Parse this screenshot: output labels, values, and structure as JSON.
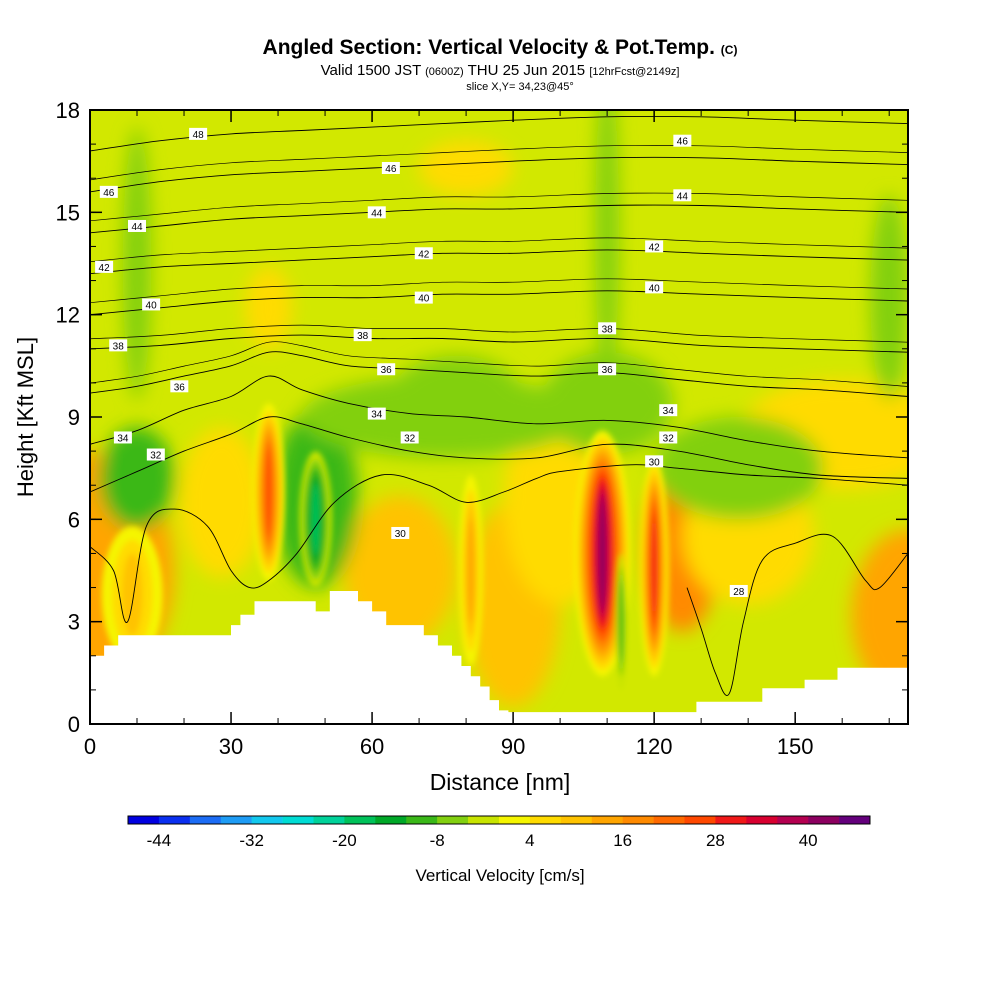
{
  "title": {
    "main": "Angled Section: Vertical Velocity & Pot.Temp.",
    "main_mark": "(C)",
    "valid_prefix": "Valid 1500 JST",
    "valid_utc": "(0600Z)",
    "valid_date": "THU 25 Jun 2015",
    "forecast": "[12hrFcst@2149z]",
    "slice": "slice X,Y= 34,23@45°"
  },
  "chart_data": {
    "type": "heatmap",
    "xlabel": "Distance [nm]",
    "ylabel": "Height [Kft MSL]",
    "xlim": [
      0,
      174
    ],
    "ylim": [
      0,
      18
    ],
    "x_ticks": [
      0,
      30,
      60,
      90,
      120,
      150
    ],
    "y_ticks": [
      0,
      3,
      6,
      9,
      12,
      15,
      18
    ],
    "colorbar": {
      "label": "Vertical Velocity [cm/s]",
      "min": -48,
      "max": 48,
      "step": 4,
      "tick_labels": [
        -44,
        -32,
        -20,
        -8,
        4,
        16,
        28,
        40
      ],
      "colors": [
        "#0000e0",
        "#0a2ff0",
        "#1c6cf5",
        "#1e9cf5",
        "#12c8ee",
        "#00dcd4",
        "#00d29a",
        "#00c25a",
        "#00a828",
        "#3ab818",
        "#82d010",
        "#c8e400",
        "#f5f500",
        "#ffdb00",
        "#ffc300",
        "#ffa500",
        "#ff8a00",
        "#ff6a00",
        "#ff4800",
        "#f01818",
        "#d80030",
        "#b40050",
        "#8c0060",
        "#64007c"
      ]
    },
    "terrain_profile": [
      [
        0,
        2
      ],
      [
        3,
        2
      ],
      [
        3,
        2.3
      ],
      [
        6,
        2.3
      ],
      [
        6,
        2.6
      ],
      [
        30,
        2.6
      ],
      [
        30,
        2.9
      ],
      [
        32,
        2.9
      ],
      [
        32,
        3.2
      ],
      [
        35,
        3.2
      ],
      [
        35,
        3.6
      ],
      [
        48,
        3.6
      ],
      [
        48,
        3.3
      ],
      [
        51,
        3.3
      ],
      [
        51,
        3.9
      ],
      [
        57,
        3.9
      ],
      [
        57,
        3.6
      ],
      [
        60,
        3.6
      ],
      [
        60,
        3.3
      ],
      [
        63,
        3.3
      ],
      [
        63,
        2.9
      ],
      [
        71,
        2.9
      ],
      [
        71,
        2.6
      ],
      [
        74,
        2.6
      ],
      [
        74,
        2.3
      ],
      [
        77,
        2.3
      ],
      [
        77,
        2
      ],
      [
        79,
        2
      ],
      [
        79,
        1.7
      ],
      [
        81,
        1.7
      ],
      [
        81,
        1.4
      ],
      [
        83,
        1.4
      ],
      [
        83,
        1.1
      ],
      [
        85,
        1.1
      ],
      [
        85,
        0.7
      ],
      [
        87,
        0.7
      ],
      [
        87,
        0.4
      ],
      [
        89,
        0.4
      ],
      [
        89,
        0.35
      ],
      [
        129,
        0.35
      ],
      [
        129,
        0.65
      ],
      [
        143,
        0.65
      ],
      [
        143,
        1.05
      ],
      [
        152,
        1.05
      ],
      [
        152,
        1.3
      ],
      [
        159,
        1.3
      ],
      [
        159,
        1.65
      ],
      [
        174,
        1.65
      ]
    ],
    "updrafts": [
      {
        "x": 38,
        "y": 6.8,
        "peak_cm_s": 28
      },
      {
        "x": 109,
        "y": 5.0,
        "peak_cm_s": 44
      },
      {
        "x": 120,
        "y": 4.6,
        "peak_cm_s": 30
      },
      {
        "x": 81,
        "y": 4.5,
        "peak_cm_s": 14
      },
      {
        "x": 9,
        "y": 3.8,
        "peak_cm_s": 12
      }
    ],
    "downdrafts": [
      {
        "x": 48,
        "y": 6.0,
        "peak_cm_s": -20
      },
      {
        "x": 113,
        "y": 3.0,
        "peak_cm_s": -12
      }
    ],
    "pot_temp_contours": [
      {
        "value": 28,
        "label": "28",
        "points": [
          [
            127,
            4.0
          ],
          [
            130,
            2.8
          ],
          [
            133,
            1.5
          ],
          [
            136,
            0.9
          ],
          [
            139,
            3.0
          ],
          [
            143,
            4.8
          ],
          [
            150,
            5.3
          ],
          [
            158,
            5.5
          ],
          [
            165,
            4.2
          ],
          [
            168,
            4.0
          ],
          [
            174,
            5.0
          ]
        ]
      },
      {
        "value": 30,
        "label": "30",
        "points": [
          [
            0,
            5.2
          ],
          [
            5,
            4.5
          ],
          [
            8,
            3.0
          ],
          [
            12,
            5.8
          ],
          [
            18,
            6.3
          ],
          [
            25,
            5.8
          ],
          [
            30,
            4.5
          ],
          [
            34,
            4.0
          ],
          [
            38,
            4.2
          ],
          [
            44,
            5.0
          ],
          [
            52,
            6.5
          ],
          [
            62,
            7.3
          ],
          [
            72,
            7.0
          ],
          [
            80,
            6.5
          ],
          [
            88,
            6.8
          ],
          [
            95,
            7.2
          ],
          [
            100,
            7.4
          ],
          [
            115,
            7.6
          ],
          [
            125,
            7.5
          ],
          [
            140,
            7.3
          ],
          [
            155,
            7.2
          ],
          [
            174,
            7.0
          ]
        ]
      },
      {
        "value": 32,
        "label": "32",
        "points": [
          [
            0,
            6.8
          ],
          [
            10,
            7.4
          ],
          [
            20,
            8.0
          ],
          [
            30,
            8.5
          ],
          [
            38,
            9.0
          ],
          [
            45,
            8.8
          ],
          [
            55,
            8.4
          ],
          [
            68,
            8.0
          ],
          [
            80,
            7.8
          ],
          [
            95,
            7.8
          ],
          [
            110,
            8.2
          ],
          [
            125,
            8.0
          ],
          [
            140,
            7.6
          ],
          [
            155,
            7.3
          ],
          [
            174,
            7.2
          ]
        ]
      },
      {
        "value": 34,
        "label": "34",
        "points": [
          [
            0,
            8.2
          ],
          [
            10,
            8.6
          ],
          [
            20,
            9.2
          ],
          [
            30,
            9.6
          ],
          [
            38,
            10.2
          ],
          [
            45,
            9.8
          ],
          [
            55,
            9.4
          ],
          [
            68,
            9.1
          ],
          [
            80,
            9.0
          ],
          [
            95,
            8.8
          ],
          [
            110,
            8.9
          ],
          [
            125,
            8.7
          ],
          [
            140,
            8.3
          ],
          [
            155,
            8.0
          ],
          [
            174,
            7.8
          ]
        ]
      },
      {
        "value": 36,
        "label": "36",
        "points": [
          [
            0,
            9.7
          ],
          [
            10,
            9.9
          ],
          [
            20,
            10.2
          ],
          [
            30,
            10.5
          ],
          [
            38,
            10.9
          ],
          [
            45,
            10.8
          ],
          [
            55,
            10.5
          ],
          [
            68,
            10.4
          ],
          [
            80,
            10.3
          ],
          [
            95,
            10.2
          ],
          [
            110,
            10.3
          ],
          [
            125,
            10.1
          ],
          [
            140,
            9.9
          ],
          [
            155,
            9.8
          ],
          [
            174,
            9.6
          ]
        ]
      },
      {
        "value": 38,
        "label": "38",
        "points": [
          [
            0,
            11.0
          ],
          [
            15,
            11.1
          ],
          [
            30,
            11.3
          ],
          [
            45,
            11.4
          ],
          [
            60,
            11.3
          ],
          [
            75,
            11.3
          ],
          [
            90,
            11.2
          ],
          [
            110,
            11.3
          ],
          [
            130,
            11.1
          ],
          [
            150,
            11.0
          ],
          [
            174,
            10.9
          ]
        ]
      },
      {
        "value": 40,
        "label": "40",
        "points": [
          [
            0,
            12.0
          ],
          [
            15,
            12.2
          ],
          [
            30,
            12.4
          ],
          [
            45,
            12.5
          ],
          [
            60,
            12.5
          ],
          [
            75,
            12.6
          ],
          [
            90,
            12.6
          ],
          [
            110,
            12.7
          ],
          [
            130,
            12.6
          ],
          [
            150,
            12.5
          ],
          [
            174,
            12.4
          ]
        ]
      },
      {
        "value": 42,
        "label": "42",
        "points": [
          [
            0,
            13.2
          ],
          [
            15,
            13.4
          ],
          [
            30,
            13.5
          ],
          [
            45,
            13.6
          ],
          [
            60,
            13.7
          ],
          [
            75,
            13.8
          ],
          [
            90,
            13.8
          ],
          [
            110,
            13.9
          ],
          [
            130,
            13.8
          ],
          [
            150,
            13.7
          ],
          [
            174,
            13.6
          ]
        ]
      },
      {
        "value": 44,
        "label": "44",
        "points": [
          [
            0,
            14.4
          ],
          [
            15,
            14.6
          ],
          [
            30,
            14.8
          ],
          [
            45,
            14.9
          ],
          [
            60,
            15.0
          ],
          [
            75,
            15.1
          ],
          [
            90,
            15.1
          ],
          [
            110,
            15.2
          ],
          [
            130,
            15.2
          ],
          [
            150,
            15.1
          ],
          [
            174,
            15.0
          ]
        ]
      },
      {
        "value": 46,
        "label": "46",
        "points": [
          [
            0,
            15.6
          ],
          [
            15,
            15.9
          ],
          [
            30,
            16.1
          ],
          [
            45,
            16.2
          ],
          [
            60,
            16.3
          ],
          [
            75,
            16.4
          ],
          [
            90,
            16.5
          ],
          [
            110,
            16.6
          ],
          [
            130,
            16.6
          ],
          [
            150,
            16.5
          ],
          [
            174,
            16.4
          ]
        ]
      },
      {
        "value": 48,
        "label": "48",
        "points": [
          [
            0,
            16.8
          ],
          [
            15,
            17.1
          ],
          [
            30,
            17.3
          ],
          [
            45,
            17.4
          ],
          [
            60,
            17.5
          ],
          [
            75,
            17.6
          ],
          [
            90,
            17.7
          ],
          [
            110,
            17.8
          ],
          [
            130,
            17.8
          ],
          [
            150,
            17.7
          ],
          [
            174,
            17.6
          ]
        ]
      }
    ],
    "contour_labels": [
      {
        "text": "48",
        "x": 23,
        "y": 17.3
      },
      {
        "text": "46",
        "x": 4,
        "y": 15.6
      },
      {
        "text": "46",
        "x": 64,
        "y": 16.3
      },
      {
        "text": "46",
        "x": 126,
        "y": 17.1
      },
      {
        "text": "44",
        "x": 10,
        "y": 14.6
      },
      {
        "text": "44",
        "x": 61,
        "y": 15.0
      },
      {
        "text": "44",
        "x": 126,
        "y": 15.5
      },
      {
        "text": "42",
        "x": 3,
        "y": 13.4
      },
      {
        "text": "42",
        "x": 71,
        "y": 13.8
      },
      {
        "text": "42",
        "x": 120,
        "y": 14.0
      },
      {
        "text": "40",
        "x": 13,
        "y": 12.3
      },
      {
        "text": "40",
        "x": 71,
        "y": 12.5
      },
      {
        "text": "40",
        "x": 120,
        "y": 12.8
      },
      {
        "text": "38",
        "x": 6,
        "y": 11.1
      },
      {
        "text": "38",
        "x": 58,
        "y": 11.4
      },
      {
        "text": "38",
        "x": 110,
        "y": 11.6
      },
      {
        "text": "36",
        "x": 19,
        "y": 9.9
      },
      {
        "text": "36",
        "x": 63,
        "y": 10.4
      },
      {
        "text": "36",
        "x": 110,
        "y": 10.4
      },
      {
        "text": "34",
        "x": 7,
        "y": 8.4
      },
      {
        "text": "34",
        "x": 61,
        "y": 9.1
      },
      {
        "text": "34",
        "x": 123,
        "y": 9.2
      },
      {
        "text": "32",
        "x": 14,
        "y": 7.9
      },
      {
        "text": "32",
        "x": 68,
        "y": 8.4
      },
      {
        "text": "32",
        "x": 123,
        "y": 8.4
      },
      {
        "text": "30",
        "x": 66,
        "y": 5.6
      },
      {
        "text": "30",
        "x": 120,
        "y": 7.7
      },
      {
        "text": "28",
        "x": 138,
        "y": 3.9
      }
    ]
  }
}
